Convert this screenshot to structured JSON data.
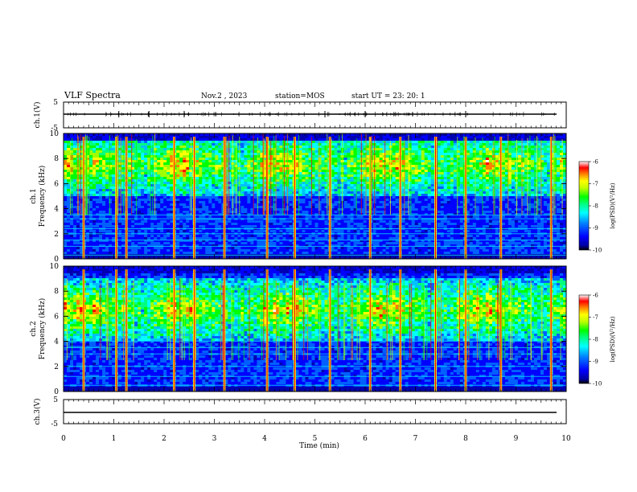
{
  "header": {
    "title": "VLF Spectra",
    "date": "Nov.2 , 2023",
    "station": "station=MOS",
    "start_ut": "start UT = 23: 20: 1"
  },
  "panels": {
    "ch1_wave": {
      "ylabel": "ch.1(V)",
      "ymax_label": "5",
      "ymin_label": "-5"
    },
    "ch1_spec": {
      "ylabel_line1": "ch.1",
      "ylabel_line2": "Frequency (kHz)"
    },
    "ch2_spec": {
      "ylabel_line1": "ch.2",
      "ylabel_line2": "Frequency (kHz)"
    },
    "ch3_wave": {
      "ylabel": "ch.3(V)",
      "ymax_label": "5",
      "ymin_label": "-5"
    }
  },
  "xaxis": {
    "label": "Time (min)",
    "ticks": [
      "0",
      "1",
      "2",
      "3",
      "4",
      "5",
      "6",
      "7",
      "8",
      "9",
      "10"
    ]
  },
  "freq_ticks": [
    "0",
    "2",
    "4",
    "6",
    "8",
    "10"
  ],
  "colorbar": {
    "label": "log(PSD)(V²/Hz)",
    "ticks": [
      "-6",
      "-7",
      "-8",
      "-9",
      "-10"
    ],
    "colors": [
      "#000000",
      "#0000b0",
      "#0000ff",
      "#0060ff",
      "#00c0ff",
      "#00ffff",
      "#00ff80",
      "#00ff00",
      "#a0ff00",
      "#ffff00",
      "#ff8000",
      "#ff0000",
      "#ffffff"
    ]
  },
  "chart_data": [
    {
      "type": "line",
      "panel": "ch.1 waveform",
      "ylabel": "ch.1(V)",
      "ylim": [
        -5,
        5
      ],
      "xlim": [
        0,
        10
      ],
      "xlabel": "Time (min)",
      "baseline_value": 0,
      "spike_times_min": [
        1.1,
        1.7,
        2.4,
        5.2,
        6.0,
        8.0
      ]
    },
    {
      "type": "heatmap",
      "panel": "ch.1 spectrogram",
      "xlabel": "Time (min)",
      "ylabel": "Frequency (kHz)",
      "xlim": [
        0,
        10
      ],
      "ylim": [
        0,
        10
      ],
      "zlabel": "log(PSD)(V²/Hz)",
      "zlim": [
        -10,
        -6
      ],
      "emission_band_khz": [
        5,
        10
      ],
      "narrowband_lines_khz": [
        0.3,
        1.0,
        1.5,
        2.0,
        2.4,
        3.2,
        3.5
      ],
      "impulsive_times_min": [
        0.4,
        1.05,
        1.25,
        2.2,
        2.6,
        3.2,
        4.05,
        4.6,
        5.3,
        6.1,
        6.7,
        7.4,
        8.0,
        8.7,
        9.7
      ]
    },
    {
      "type": "heatmap",
      "panel": "ch.2 spectrogram",
      "xlabel": "Time (min)",
      "ylabel": "Frequency (kHz)",
      "xlim": [
        0,
        10
      ],
      "ylim": [
        0,
        10
      ],
      "zlabel": "log(PSD)(V²/Hz)",
      "zlim": [
        -10,
        -6
      ],
      "emission_band_khz": [
        4,
        9
      ],
      "narrowband_lines_khz": [
        0.5,
        1.2,
        2.0,
        3.0,
        3.5,
        4.0
      ],
      "impulsive_times_min": [
        0.4,
        1.05,
        1.25,
        2.2,
        2.6,
        3.2,
        4.05,
        4.6,
        5.3,
        6.1,
        6.7,
        7.4,
        8.0,
        8.7,
        9.7
      ]
    },
    {
      "type": "line",
      "panel": "ch.3 waveform",
      "ylabel": "ch.3(V)",
      "ylim": [
        -5,
        5
      ],
      "xlim": [
        0,
        10
      ],
      "xlabel": "Time (min)",
      "baseline_value": 0
    }
  ]
}
